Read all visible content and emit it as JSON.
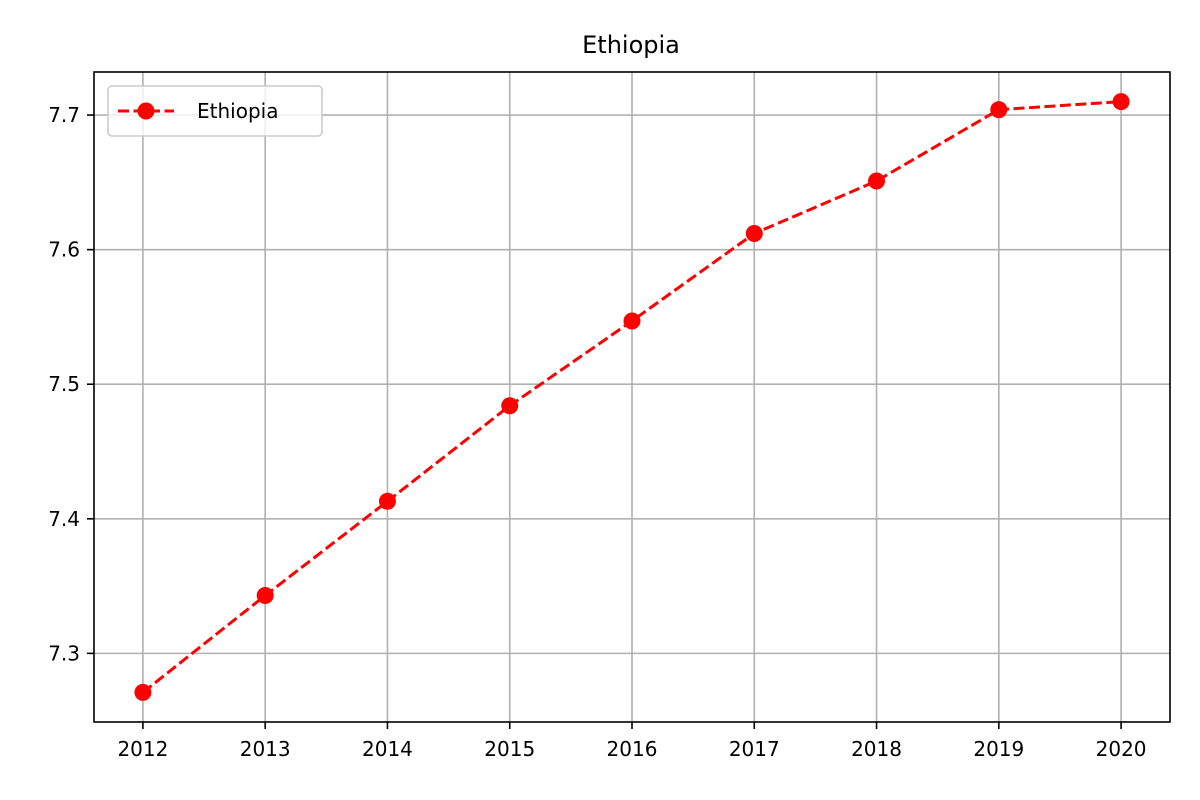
{
  "chart_data": {
    "type": "line",
    "title": "Ethiopia",
    "xlabel": "",
    "ylabel": "",
    "x": [
      2012,
      2013,
      2014,
      2015,
      2016,
      2017,
      2018,
      2019,
      2020
    ],
    "x_tick_labels": [
      "2012",
      "2013",
      "2014",
      "2015",
      "2016",
      "2017",
      "2018",
      "2019",
      "2020"
    ],
    "y_tick_values": [
      7.3,
      7.4,
      7.5,
      7.6,
      7.7
    ],
    "y_tick_labels": [
      "7.3",
      "7.4",
      "7.5",
      "7.6",
      "7.7"
    ],
    "xlim": [
      2011.6,
      2020.4
    ],
    "ylim": [
      7.249,
      7.732
    ],
    "grid": true,
    "legend_position": "top-left",
    "series": [
      {
        "name": "Ethiopia",
        "values": [
          7.271,
          7.343,
          7.413,
          7.484,
          7.547,
          7.612,
          7.651,
          7.704,
          7.71
        ],
        "color": "#ff0000",
        "line_style": "dashed",
        "marker": "circle"
      }
    ]
  }
}
